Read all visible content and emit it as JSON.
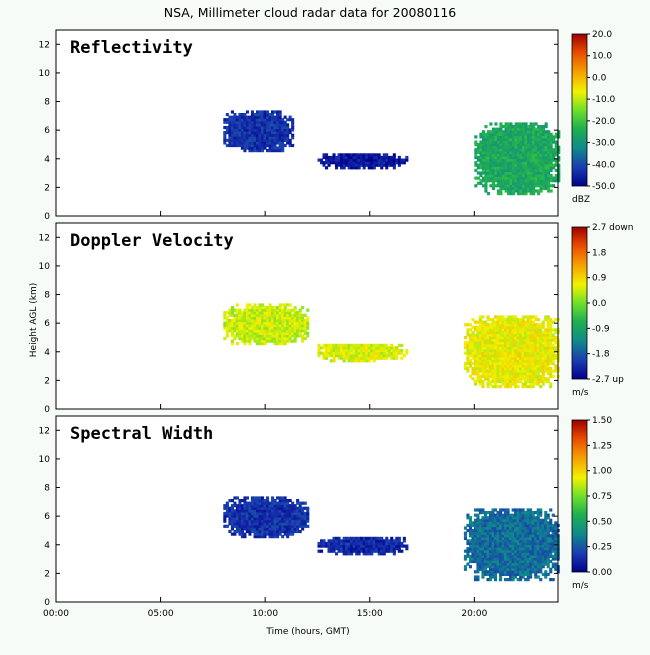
{
  "figure": {
    "title": "NSA, Millimeter cloud radar data for 20080116",
    "xlabel": "Time (hours, GMT)",
    "ylabel": "Height AGL (km)"
  },
  "chart_data": [
    {
      "type": "heatmap",
      "panel": "Reflectivity",
      "label": "Reflectivity",
      "x_ticks": [
        "00:00",
        "05:00",
        "10:00",
        "15:00",
        "20:00"
      ],
      "x_range_hours": [
        0,
        24
      ],
      "y_ticks": [
        "0",
        "2",
        "4",
        "6",
        "8",
        "10",
        "12"
      ],
      "y_range_km": [
        0,
        13
      ],
      "colorbar": {
        "labels": [
          "20.0",
          "10.0",
          "0.0",
          "-10.0",
          "-20.0",
          "-30.0",
          "-40.0",
          "-50.0"
        ],
        "unit": "dBZ",
        "range": [
          -50,
          20
        ]
      },
      "features": [
        {
          "hours": [
            8.0,
            11.3
          ],
          "km": [
            4.5,
            7.2
          ],
          "level": 0.1
        },
        {
          "hours": [
            12.5,
            16.7
          ],
          "km": [
            3.3,
            4.3
          ],
          "level": 0.05
        },
        {
          "hours": [
            20.0,
            24.0
          ],
          "km": [
            1.5,
            6.5
          ],
          "level": 0.35
        }
      ],
      "grid": false
    },
    {
      "type": "heatmap",
      "panel": "Doppler Velocity",
      "label": "Doppler Velocity",
      "x_ticks": [
        "00:00",
        "05:00",
        "10:00",
        "15:00",
        "20:00"
      ],
      "x_range_hours": [
        0,
        24
      ],
      "y_ticks": [
        "0",
        "2",
        "4",
        "6",
        "8",
        "10",
        "12"
      ],
      "y_range_km": [
        0,
        13
      ],
      "colorbar": {
        "labels": [
          "2.7 down",
          "1.8",
          "0.9",
          "0.0",
          "-0.9",
          "-1.8",
          "-2.7 up"
        ],
        "unit": "m/s",
        "range": [
          -2.7,
          2.7
        ]
      },
      "features": [
        {
          "hours": [
            8.0,
            12.0
          ],
          "km": [
            4.5,
            7.2
          ],
          "level": 0.58
        },
        {
          "hours": [
            12.5,
            16.7
          ],
          "km": [
            3.3,
            4.5
          ],
          "level": 0.6
        },
        {
          "hours": [
            19.5,
            24.0
          ],
          "km": [
            1.5,
            6.5
          ],
          "level": 0.62
        }
      ],
      "grid": false
    },
    {
      "type": "heatmap",
      "panel": "Spectral Width",
      "label": "Spectral Width",
      "x_ticks": [
        "00:00",
        "05:00",
        "10:00",
        "15:00",
        "20:00"
      ],
      "x_range_hours": [
        0,
        24
      ],
      "y_ticks": [
        "0",
        "2",
        "4",
        "6",
        "8",
        "10",
        "12"
      ],
      "y_range_km": [
        0,
        13
      ],
      "colorbar": {
        "labels": [
          "1.50",
          "1.25",
          "1.00",
          "0.75",
          "0.50",
          "0.25",
          "0.00"
        ],
        "unit": "m/s",
        "range": [
          0.0,
          1.5
        ]
      },
      "features": [
        {
          "hours": [
            8.0,
            12.0
          ],
          "km": [
            4.5,
            7.2
          ],
          "level": 0.1
        },
        {
          "hours": [
            12.5,
            16.7
          ],
          "km": [
            3.3,
            4.5
          ],
          "level": 0.08
        },
        {
          "hours": [
            19.5,
            24.0
          ],
          "km": [
            1.5,
            6.5
          ],
          "level": 0.2
        }
      ],
      "grid": false
    }
  ],
  "colors": {
    "background": "#f7fbf7",
    "frame": "#000000"
  }
}
